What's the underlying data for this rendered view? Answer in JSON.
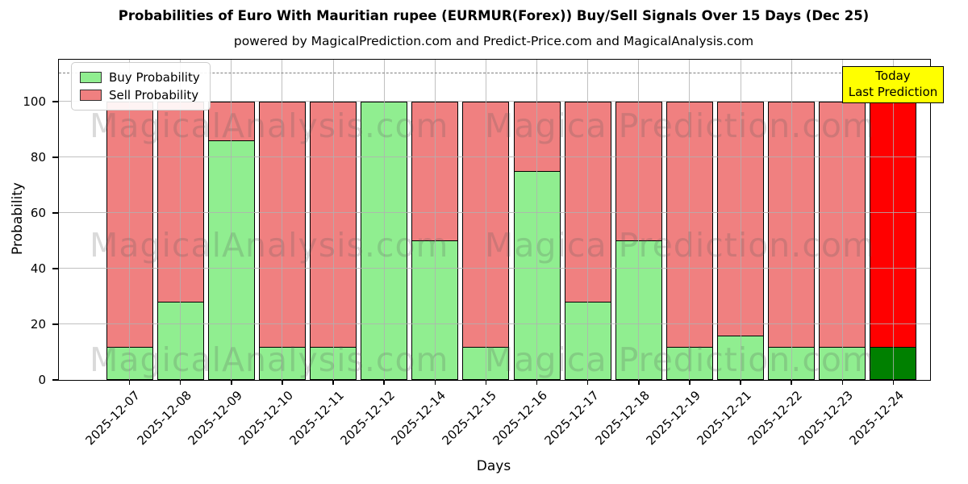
{
  "title": "Probabilities of Euro With Mauritian rupee (EURMUR(Forex)) Buy/Sell Signals Over 15 Days (Dec 25)",
  "subtitle": "powered by MagicalPrediction.com and Predict-Price.com and MagicalAnalysis.com",
  "legend": {
    "buy_label": "Buy Probability",
    "sell_label": "Sell Probability"
  },
  "annotation_box": {
    "line1": "Today",
    "line2": "Last Prediction"
  },
  "watermarks": {
    "left": "MagicalAnalysis.com",
    "right": "Magica Prediction.com"
  },
  "axes": {
    "x_label": "Days",
    "y_label": "Probability",
    "y_ticks": [
      0,
      20,
      40,
      60,
      80,
      100
    ]
  },
  "colors": {
    "buy": "#90ee90",
    "sell": "#f08080",
    "buy_today": "#008000",
    "sell_today": "#ff0000",
    "bar_edge": "#000000",
    "grid": "#b0b0b0",
    "dashed_line": "#808080",
    "annotation_bg": "#ffff00",
    "annotation_border": "#000000",
    "watermark": "#5a5a5a"
  },
  "chart_data": {
    "type": "bar",
    "stacked": true,
    "title": "Probabilities of Euro With Mauritian rupee (EURMUR(Forex)) Buy/Sell Signals Over 15 Days (Dec 25)",
    "xlabel": "Days",
    "ylabel": "Probability",
    "ylim": [
      0,
      115
    ],
    "threshold_dashed_y": 110,
    "grid": true,
    "legend_position": "upper left",
    "categories": [
      "2025-12-07",
      "2025-12-08",
      "2025-12-09",
      "2025-12-10",
      "2025-12-11",
      "2025-12-12",
      "2025-12-14",
      "2025-12-15",
      "2025-12-16",
      "2025-12-17",
      "2025-12-18",
      "2025-12-19",
      "2025-12-21",
      "2025-12-22",
      "2025-12-23",
      "2025-12-24"
    ],
    "series": [
      {
        "name": "Buy Probability",
        "color": "#90ee90",
        "values": [
          12,
          28,
          86,
          12,
          12,
          100,
          50,
          12,
          75,
          28,
          50,
          12,
          16,
          12,
          12,
          12
        ]
      },
      {
        "name": "Sell Probability",
        "color": "#f08080",
        "values": [
          88,
          72,
          14,
          88,
          88,
          0,
          50,
          88,
          25,
          72,
          50,
          88,
          84,
          88,
          88,
          88
        ]
      }
    ],
    "today_bar": {
      "category": "2025-12-24",
      "buy_color": "#008000",
      "sell_color": "#ff0000"
    }
  }
}
